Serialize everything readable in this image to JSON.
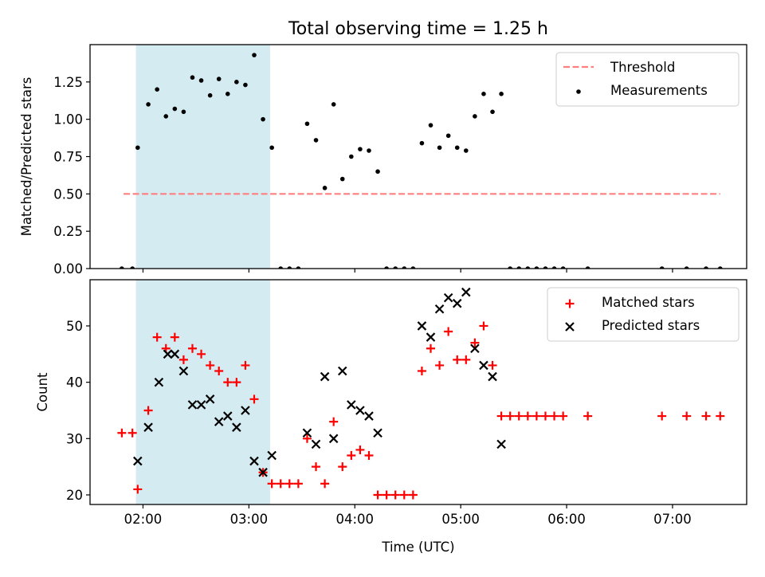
{
  "title": "Total observing time = 1.25 h",
  "colors": {
    "shade": "#add8e6",
    "threshold": "#ff7f7f",
    "matched": "#ff0000",
    "predicted": "#000000",
    "measurement": "#000000"
  },
  "chart_data": [
    {
      "type": "scatter",
      "ylabel": "Matched/Predicted stars",
      "xlim": [
        1.5,
        7.7
      ],
      "ylim": [
        0,
        1.5
      ],
      "yticks": [
        0,
        0.25,
        0.5,
        0.75,
        1.0,
        1.25
      ],
      "ytick_labels": [
        "0.00",
        "0.25",
        "0.50",
        "0.75",
        "1.00",
        "1.25"
      ],
      "xticks": [
        2,
        3,
        4,
        5,
        6,
        7
      ],
      "shaded_interval": [
        "01:56",
        "03:12"
      ],
      "legend": {
        "position": "top-right",
        "entries": [
          "Threshold",
          "Measurements"
        ]
      },
      "threshold": {
        "name": "Threshold",
        "y": 0.5,
        "x_range": [
          "01:49",
          "07:27"
        ]
      },
      "series": [
        {
          "name": "Measurements",
          "x": [
            "01:48",
            "01:54",
            "01:57",
            "02:03",
            "02:08",
            "02:13",
            "02:18",
            "02:23",
            "02:28",
            "02:33",
            "02:38",
            "02:43",
            "02:48",
            "02:53",
            "02:58",
            "03:03",
            "03:08",
            "03:13",
            "03:18",
            "03:23",
            "03:28",
            "03:33",
            "03:38",
            "03:43",
            "03:48",
            "03:53",
            "03:58",
            "04:03",
            "04:08",
            "04:13",
            "04:18",
            "04:23",
            "04:28",
            "04:33",
            "04:38",
            "04:43",
            "04:48",
            "04:53",
            "04:58",
            "05:03",
            "05:08",
            "05:13",
            "05:18",
            "05:23",
            "05:28",
            "05:33",
            "05:38",
            "05:43",
            "05:48",
            "05:53",
            "05:58",
            "06:12",
            "06:54",
            "07:08",
            "07:19",
            "07:27"
          ],
          "y": [
            0,
            0,
            0.81,
            1.1,
            1.2,
            1.02,
            1.07,
            1.05,
            1.28,
            1.26,
            1.16,
            1.27,
            1.17,
            1.25,
            1.23,
            1.43,
            1.0,
            0.81,
            0,
            0,
            0,
            0.97,
            0.86,
            0.54,
            1.1,
            0.6,
            0.75,
            0.8,
            0.79,
            0.65,
            0,
            0,
            0,
            0,
            0.84,
            0.96,
            0.81,
            0.89,
            0.81,
            0.79,
            1.02,
            1.17,
            1.05,
            1.17,
            0,
            0,
            0,
            0,
            0,
            0,
            0,
            0,
            0,
            0,
            0,
            0
          ]
        }
      ]
    },
    {
      "type": "scatter",
      "xlabel": "Time (UTC)",
      "ylabel": "Count",
      "xlim": [
        1.5,
        7.7
      ],
      "ylim": [
        18.3,
        58.2
      ],
      "yticks": [
        20,
        30,
        40,
        50
      ],
      "xticks": [
        2,
        3,
        4,
        5,
        6,
        7
      ],
      "xtick_labels": [
        "02:00",
        "03:00",
        "04:00",
        "05:00",
        "06:00",
        "07:00"
      ],
      "shaded_interval": [
        "01:56",
        "03:12"
      ],
      "legend": {
        "position": "top-right",
        "entries": [
          "Matched stars",
          "Predicted stars"
        ]
      },
      "series": [
        {
          "name": "Matched stars",
          "marker": "+",
          "x": [
            "01:48",
            "01:54",
            "01:57",
            "02:03",
            "02:08",
            "02:13",
            "02:18",
            "02:23",
            "02:28",
            "02:33",
            "02:38",
            "02:43",
            "02:48",
            "02:53",
            "02:58",
            "03:03",
            "03:08",
            "03:13",
            "03:18",
            "03:23",
            "03:28",
            "03:33",
            "03:38",
            "03:43",
            "03:48",
            "03:53",
            "03:58",
            "04:03",
            "04:08",
            "04:13",
            "04:18",
            "04:23",
            "04:28",
            "04:33",
            "04:38",
            "04:43",
            "04:48",
            "04:53",
            "04:58",
            "05:03",
            "05:08",
            "05:13",
            "05:18",
            "05:23",
            "05:28",
            "05:33",
            "05:38",
            "05:43",
            "05:48",
            "05:53",
            "05:58",
            "06:12",
            "06:54",
            "07:08",
            "07:19",
            "07:27"
          ],
          "y": [
            31,
            31,
            21,
            35,
            48,
            46,
            48,
            44,
            46,
            45,
            43,
            42,
            40,
            40,
            43,
            37,
            24,
            22,
            22,
            22,
            22,
            30,
            25,
            22,
            33,
            25,
            27,
            28,
            27,
            20,
            20,
            20,
            20,
            20,
            42,
            46,
            43,
            49,
            44,
            44,
            47,
            50,
            43,
            34,
            34,
            34,
            34,
            34,
            34,
            34,
            34,
            34,
            34,
            34,
            34,
            34
          ]
        },
        {
          "name": "Predicted stars",
          "marker": "x",
          "x": [
            "01:57",
            "02:03",
            "02:09",
            "02:14",
            "02:18",
            "02:23",
            "02:28",
            "02:33",
            "02:38",
            "02:43",
            "02:48",
            "02:53",
            "02:58",
            "03:03",
            "03:08",
            "03:13",
            "03:33",
            "03:38",
            "03:43",
            "03:48",
            "03:53",
            "03:58",
            "04:03",
            "04:08",
            "04:13",
            "04:38",
            "04:43",
            "04:48",
            "04:53",
            "04:58",
            "05:03",
            "05:08",
            "05:13",
            "05:18",
            "05:23"
          ],
          "y": [
            26,
            32,
            40,
            45,
            45,
            42,
            36,
            36,
            37,
            33,
            34,
            32,
            35,
            26,
            24,
            27,
            31,
            29,
            41,
            30,
            42,
            36,
            35,
            34,
            31,
            50,
            48,
            53,
            55,
            54,
            56,
            46,
            43,
            41,
            29
          ]
        }
      ]
    }
  ]
}
